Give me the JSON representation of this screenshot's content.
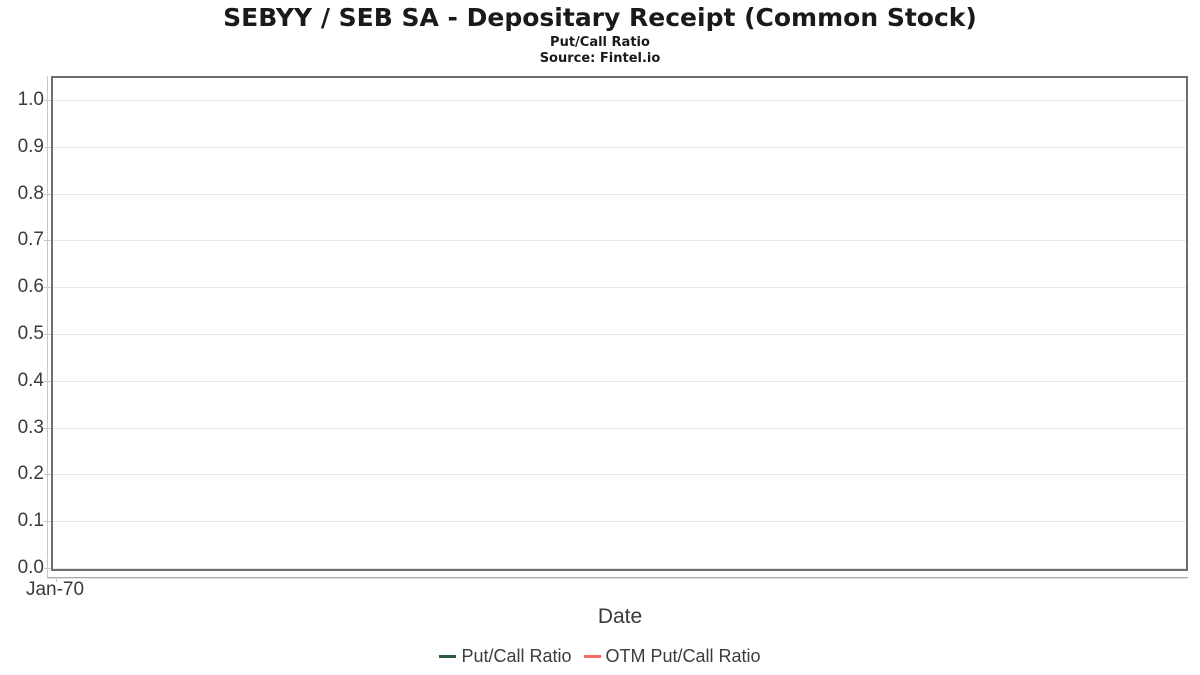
{
  "header": {
    "title": "SEBYY / SEB SA - Depositary Receipt (Common Stock)",
    "subtitle": "Put/Call Ratio",
    "source": "Source: Fintel.io"
  },
  "chart_data": {
    "type": "line",
    "title": "SEBYY / SEB SA - Depositary Receipt (Common Stock)",
    "subtitle": "Put/Call Ratio",
    "source_label": "Source: Fintel.io",
    "xlabel": "Date",
    "ylabel": "",
    "x_tick_labels": [
      "Jan-70"
    ],
    "y_ticks": [
      0.0,
      0.1,
      0.2,
      0.3,
      0.4,
      0.5,
      0.6,
      0.7,
      0.8,
      0.9,
      1.0
    ],
    "ylim": [
      0.0,
      1.05
    ],
    "grid": true,
    "legend_position": "bottom-center",
    "series": [
      {
        "name": "Put/Call Ratio",
        "color": "#2d5a39",
        "x": [],
        "values": []
      },
      {
        "name": "OTM Put/Call Ratio",
        "color": "#f76a6a",
        "x": [],
        "values": []
      }
    ]
  },
  "colors": {
    "plot_border": "#6e6e6e",
    "gridline": "#e8e8e8",
    "axis_line": "#c8c8c8",
    "tick_text": "#3a3a3a",
    "title_text": "#1a1a1a",
    "background": "#ffffff"
  }
}
